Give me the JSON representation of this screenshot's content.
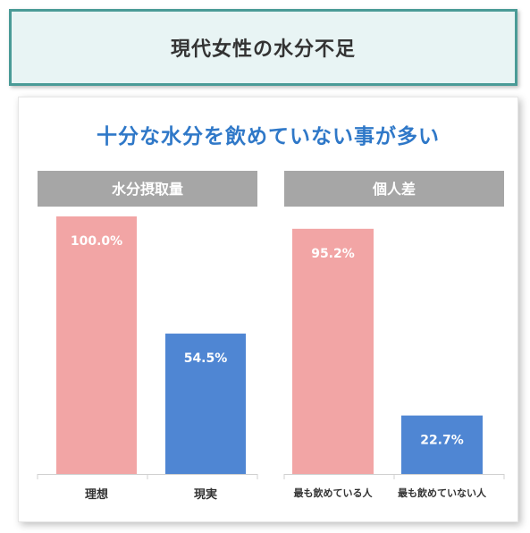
{
  "header": {
    "title": "現代女性の水分不足"
  },
  "subtitle": "十分な水分を飲めていない事が多い",
  "colors": {
    "pink": "#f2a5a5",
    "blue": "#4f86d3",
    "header_gray": "#a6a6a6",
    "frame_teal": "#4a9b97"
  },
  "chart_data": [
    {
      "type": "bar",
      "title": "水分摂取量",
      "categories": [
        "理想",
        "現実"
      ],
      "values": [
        100.0,
        54.5
      ],
      "data_labels": [
        "100.0%",
        "54.5%"
      ],
      "bar_colors": [
        "#f2a5a5",
        "#4f86d3"
      ],
      "ylim": [
        0,
        100
      ]
    },
    {
      "type": "bar",
      "title": "個人差",
      "categories": [
        "最も飲めている人",
        "最も飲めていない人"
      ],
      "values": [
        95.2,
        22.7
      ],
      "data_labels": [
        "95.2%",
        "22.7%"
      ],
      "bar_colors": [
        "#f2a5a5",
        "#4f86d3"
      ],
      "ylim": [
        0,
        100
      ]
    }
  ]
}
